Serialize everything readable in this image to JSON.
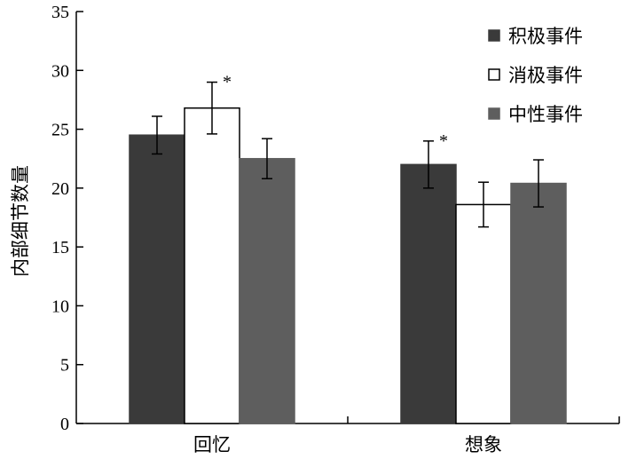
{
  "chart_data": {
    "type": "bar",
    "title": "",
    "xlabel": "",
    "ylabel": "内部细节数量",
    "ylim": [
      0,
      35
    ],
    "yticks": [
      0,
      5,
      10,
      15,
      20,
      25,
      30,
      35
    ],
    "categories": [
      "回忆",
      "想象"
    ],
    "series": [
      {
        "name": "积极事件",
        "color": "#3a3a3a",
        "values": [
          24.5,
          22.0
        ],
        "errors": [
          1.6,
          2.0
        ],
        "significant": [
          false,
          true
        ]
      },
      {
        "name": "消极事件",
        "color": "#ffffff",
        "values": [
          26.8,
          18.6
        ],
        "errors": [
          2.2,
          1.9
        ],
        "significant": [
          true,
          false
        ]
      },
      {
        "name": "中性事件",
        "color": "#5e5e5e",
        "values": [
          22.5,
          20.4
        ],
        "errors": [
          1.7,
          2.0
        ],
        "significant": [
          false,
          false
        ]
      }
    ],
    "significance_marker": "*",
    "legend_position": "top-right",
    "grid": false
  }
}
